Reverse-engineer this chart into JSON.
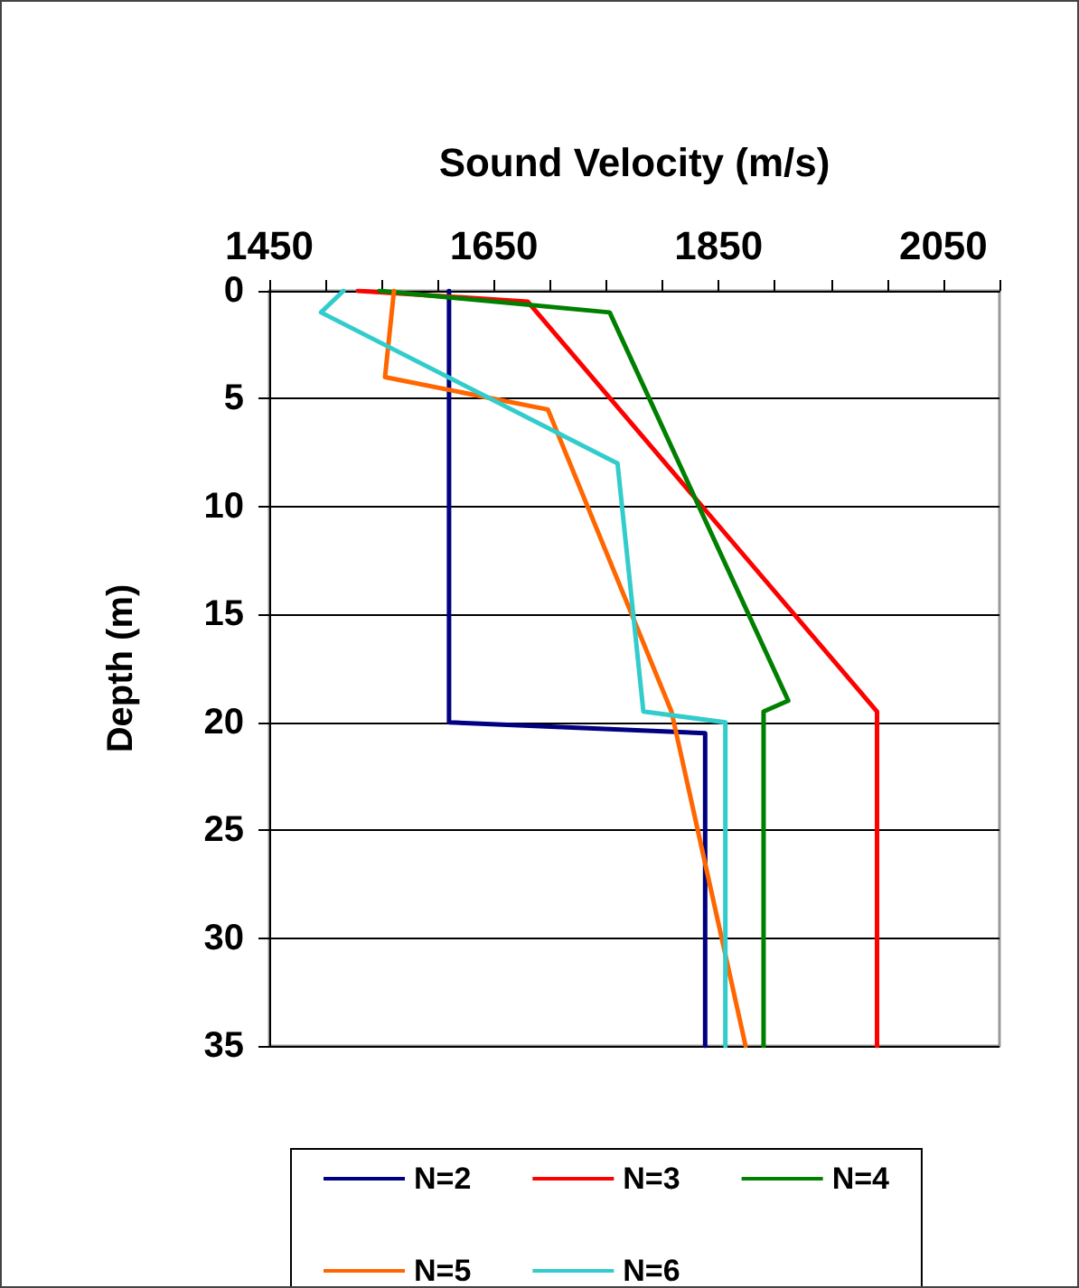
{
  "chart_data": {
    "type": "line",
    "xlabel": "Sound Velocity (m/s)",
    "ylabel": "Depth (m)",
    "xlim": [
      1450,
      2100
    ],
    "xticks": [
      1450,
      {
        "value": 1500,
        "label": null
      },
      {
        "value": 1550,
        "label": null
      },
      {
        "value": 1600,
        "label": null
      },
      1650,
      {
        "value": 1700,
        "label": null
      },
      {
        "value": 1750,
        "label": null
      },
      {
        "value": 1800,
        "label": null
      },
      1850,
      {
        "value": 1900,
        "label": null
      },
      {
        "value": 1950,
        "label": null
      },
      {
        "value": 2000,
        "label": null
      },
      2050,
      {
        "value": 2100,
        "label": null
      }
    ],
    "ylim": [
      35,
      0
    ],
    "yticks": [
      0,
      5,
      10,
      15,
      20,
      25,
      30,
      35
    ],
    "grid": "y",
    "legend": "bottom",
    "marker": "none",
    "line_style": "solid",
    "series": [
      {
        "name": "N=2",
        "color": "#000080",
        "x": [
          1610,
          1610,
          1838,
          1838
        ],
        "values": [
          0,
          20,
          20.5,
          35
        ]
      },
      {
        "name": "N=3",
        "color": "#ff0000",
        "x": [
          1529,
          1680,
          1991,
          1991
        ],
        "values": [
          0,
          0.5,
          19.5,
          35
        ]
      },
      {
        "name": "N=4",
        "color": "#008000",
        "x": [
          1548,
          1753,
          1912,
          1890,
          1890
        ],
        "values": [
          0,
          1,
          19,
          19.5,
          35
        ]
      },
      {
        "name": "N=5",
        "color": "#ff6600",
        "x": [
          1561,
          1553,
          1698,
          1808,
          1874
        ],
        "values": [
          0,
          4,
          5.5,
          19.5,
          35
        ]
      },
      {
        "name": "N=6",
        "color": "#33cccc",
        "x": [
          1516,
          1496,
          1760,
          1783,
          1856,
          1856
        ],
        "values": [
          0,
          1,
          8,
          19.5,
          20,
          35
        ]
      }
    ]
  }
}
